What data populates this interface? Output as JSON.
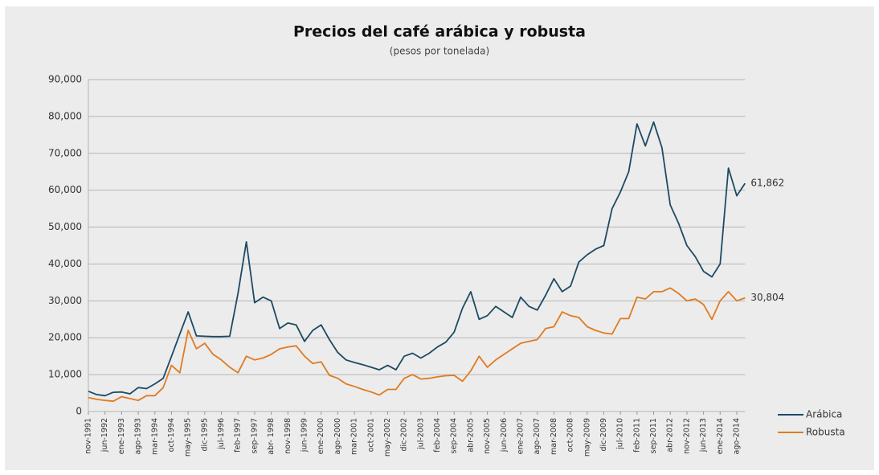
{
  "chart_data": {
    "type": "line",
    "title": "Precios del café arábica y robusta",
    "subtitle": "(pesos por tonelada)",
    "categories": [
      "nov-1991",
      null,
      "jun-1992",
      null,
      "ene-1993",
      null,
      "ago-1993",
      null,
      "mar-1994",
      null,
      "oct-1994",
      null,
      "may-1995",
      null,
      "dic-1995",
      null,
      "jul-1996",
      null,
      "feb-1997",
      null,
      "sep-1997",
      null,
      "abr- 1998",
      null,
      "nov-1998",
      null,
      "jun-1999",
      null,
      "ene-2000",
      null,
      "ago-2000",
      null,
      "mar-2001",
      null,
      "oct-2001",
      null,
      "may-2002",
      null,
      "dic-2002",
      null,
      "jul-2003",
      null,
      "feb-2004",
      null,
      "sep-2004",
      null,
      "abr-2005",
      null,
      "nov-2005",
      null,
      "jun-2006",
      null,
      "ene-2007",
      null,
      "ago-2007",
      null,
      "mar-2008",
      null,
      "oct-2008",
      null,
      "may-2009",
      null,
      "dic-2009",
      null,
      "jul-2010",
      null,
      "feb-2011",
      null,
      "sep-2011",
      null,
      "abr-2012",
      null,
      "nov-2012",
      null,
      "jun-2013",
      null,
      "ene-2014",
      null,
      "ago-2014",
      null
    ],
    "series": [
      {
        "name": "Arábica",
        "color": "#1d4a63",
        "values": [
          5500,
          4600,
          4300,
          5200,
          5300,
          4800,
          6500,
          6200,
          7500,
          9000,
          15000,
          21000,
          27000,
          20500,
          20400,
          20300,
          20300,
          20400,
          32000,
          46000,
          29500,
          31000,
          30000,
          22500,
          24000,
          23500,
          19000,
          22000,
          23500,
          19500,
          16000,
          14000,
          13300,
          12700,
          12000,
          11300,
          12500,
          11300,
          15000,
          15800,
          14500,
          15800,
          17500,
          18800,
          21500,
          28000,
          32500,
          25000,
          26000,
          28500,
          27000,
          25500,
          31000,
          28500,
          27500,
          31500,
          36000,
          32500,
          34000,
          40500,
          42500,
          44000,
          45000,
          55000,
          59500,
          65000,
          78000,
          72000,
          78500,
          71500,
          56000,
          51000,
          45000,
          42000,
          38000,
          36500,
          40000,
          66000,
          58500,
          61862
        ],
        "value_labels": [
          null,
          null,
          null,
          null,
          null,
          null,
          null,
          null,
          null,
          null,
          null,
          null,
          null,
          null,
          null,
          null,
          null,
          null,
          null,
          null,
          null,
          null,
          null,
          null,
          null,
          null,
          null,
          null,
          null,
          null,
          null,
          null,
          null,
          null,
          null,
          null,
          null,
          null,
          null,
          null,
          null,
          null,
          null,
          null,
          null,
          null,
          null,
          null,
          null,
          null,
          null,
          null,
          null,
          null,
          null,
          null,
          null,
          null,
          null,
          null,
          null,
          null,
          null,
          null,
          null,
          null,
          null,
          null,
          null,
          null,
          null,
          null,
          null,
          null,
          null,
          null,
          null,
          null,
          null,
          "61,862"
        ]
      },
      {
        "name": "Robusta",
        "color": "#e07b20",
        "values": [
          3800,
          3300,
          3000,
          2800,
          4000,
          3500,
          3000,
          4300,
          4300,
          6500,
          12500,
          10500,
          22000,
          17000,
          18500,
          15500,
          14000,
          12000,
          10500,
          15000,
          14000,
          14500,
          15500,
          17000,
          17500,
          17800,
          15000,
          13000,
          13500,
          9800,
          9000,
          7500,
          6800,
          6000,
          5300,
          4500,
          6000,
          6000,
          9000,
          10000,
          8800,
          9000,
          9400,
          9700,
          9800,
          8200,
          11000,
          15000,
          12000,
          14000,
          15500,
          17000,
          18500,
          19000,
          19500,
          22500,
          23000,
          27000,
          26000,
          25500,
          23000,
          22000,
          21300,
          21000,
          25200,
          25200,
          31000,
          30500,
          32500,
          32500,
          33500,
          32000,
          30000,
          30500,
          29000,
          25000,
          30000,
          32500,
          30000,
          30804
        ],
        "value_labels": [
          null,
          null,
          null,
          null,
          null,
          null,
          null,
          null,
          null,
          null,
          null,
          null,
          null,
          null,
          null,
          null,
          null,
          null,
          null,
          null,
          null,
          null,
          null,
          null,
          null,
          null,
          null,
          null,
          null,
          null,
          null,
          null,
          null,
          null,
          null,
          null,
          null,
          null,
          null,
          null,
          null,
          null,
          null,
          null,
          null,
          null,
          null,
          null,
          null,
          null,
          null,
          null,
          null,
          null,
          null,
          null,
          null,
          null,
          null,
          null,
          null,
          null,
          null,
          null,
          null,
          null,
          null,
          null,
          null,
          null,
          null,
          null,
          null,
          null,
          null,
          null,
          null,
          null,
          null,
          "30,804"
        ]
      }
    ],
    "ylim": [
      0,
      90000
    ],
    "yticks": [
      0,
      {
        "value": 10000,
        "label": "10,000"
      },
      {
        "value": 20000,
        "label": "20,000"
      },
      {
        "value": 30000,
        "label": "30,000"
      },
      {
        "value": 40000,
        "label": "40,000"
      },
      {
        "value": 50000,
        "label": "50,000"
      },
      {
        "value": 60000,
        "label": "60,000"
      },
      {
        "value": 70000,
        "label": "70,000"
      },
      {
        "value": 80000,
        "label": "80,000"
      },
      {
        "value": 90000,
        "label": "90,000"
      }
    ],
    "grid": true,
    "legend": "bottom-right"
  }
}
